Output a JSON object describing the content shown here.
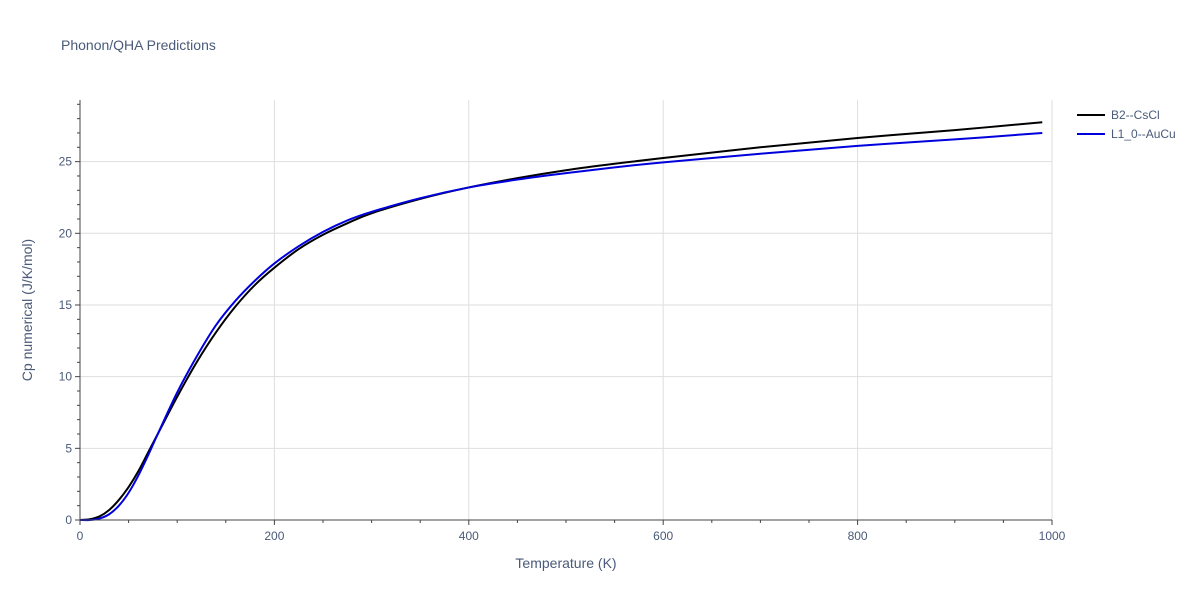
{
  "chart_data": {
    "type": "line",
    "title": "Phonon/QHA Predictions",
    "xlabel": "Temperature (K)",
    "ylabel": "Cp numerical (J/K/mol)",
    "xlim": [
      0,
      1000
    ],
    "ylim": [
      0,
      29.3
    ],
    "xticks": [
      0,
      200,
      400,
      600,
      800,
      1000
    ],
    "yticks": [
      0,
      5,
      10,
      15,
      20,
      25
    ],
    "grid": true,
    "legend_position": "top-right",
    "series": [
      {
        "name": "B2--CsCl",
        "color": "#000000",
        "points": [
          [
            0,
            0
          ],
          [
            10,
            0.05
          ],
          [
            20,
            0.25
          ],
          [
            30,
            0.7
          ],
          [
            40,
            1.4
          ],
          [
            50,
            2.3
          ],
          [
            60,
            3.4
          ],
          [
            70,
            4.7
          ],
          [
            80,
            6.0
          ],
          [
            100,
            8.6
          ],
          [
            120,
            11.0
          ],
          [
            140,
            13.1
          ],
          [
            160,
            14.9
          ],
          [
            180,
            16.4
          ],
          [
            200,
            17.6
          ],
          [
            225,
            18.9
          ],
          [
            250,
            19.9
          ],
          [
            275,
            20.7
          ],
          [
            300,
            21.4
          ],
          [
            350,
            22.4
          ],
          [
            400,
            23.2
          ],
          [
            450,
            23.85
          ],
          [
            500,
            24.4
          ],
          [
            550,
            24.85
          ],
          [
            600,
            25.25
          ],
          [
            700,
            26.0
          ],
          [
            800,
            26.65
          ],
          [
            900,
            27.2
          ],
          [
            990,
            27.75
          ]
        ]
      },
      {
        "name": "L1_0--AuCu",
        "color": "#0000dd",
        "points": [
          [
            0,
            0
          ],
          [
            10,
            0.0
          ],
          [
            20,
            0.1
          ],
          [
            30,
            0.4
          ],
          [
            40,
            1.0
          ],
          [
            50,
            1.9
          ],
          [
            60,
            3.1
          ],
          [
            70,
            4.5
          ],
          [
            80,
            6.0
          ],
          [
            100,
            8.9
          ],
          [
            120,
            11.4
          ],
          [
            140,
            13.6
          ],
          [
            160,
            15.3
          ],
          [
            180,
            16.7
          ],
          [
            200,
            17.9
          ],
          [
            225,
            19.1
          ],
          [
            250,
            20.1
          ],
          [
            275,
            20.9
          ],
          [
            300,
            21.5
          ],
          [
            350,
            22.45
          ],
          [
            400,
            23.2
          ],
          [
            450,
            23.75
          ],
          [
            500,
            24.2
          ],
          [
            550,
            24.6
          ],
          [
            600,
            24.95
          ],
          [
            700,
            25.55
          ],
          [
            800,
            26.1
          ],
          [
            900,
            26.55
          ],
          [
            990,
            27.0
          ]
        ]
      }
    ]
  }
}
